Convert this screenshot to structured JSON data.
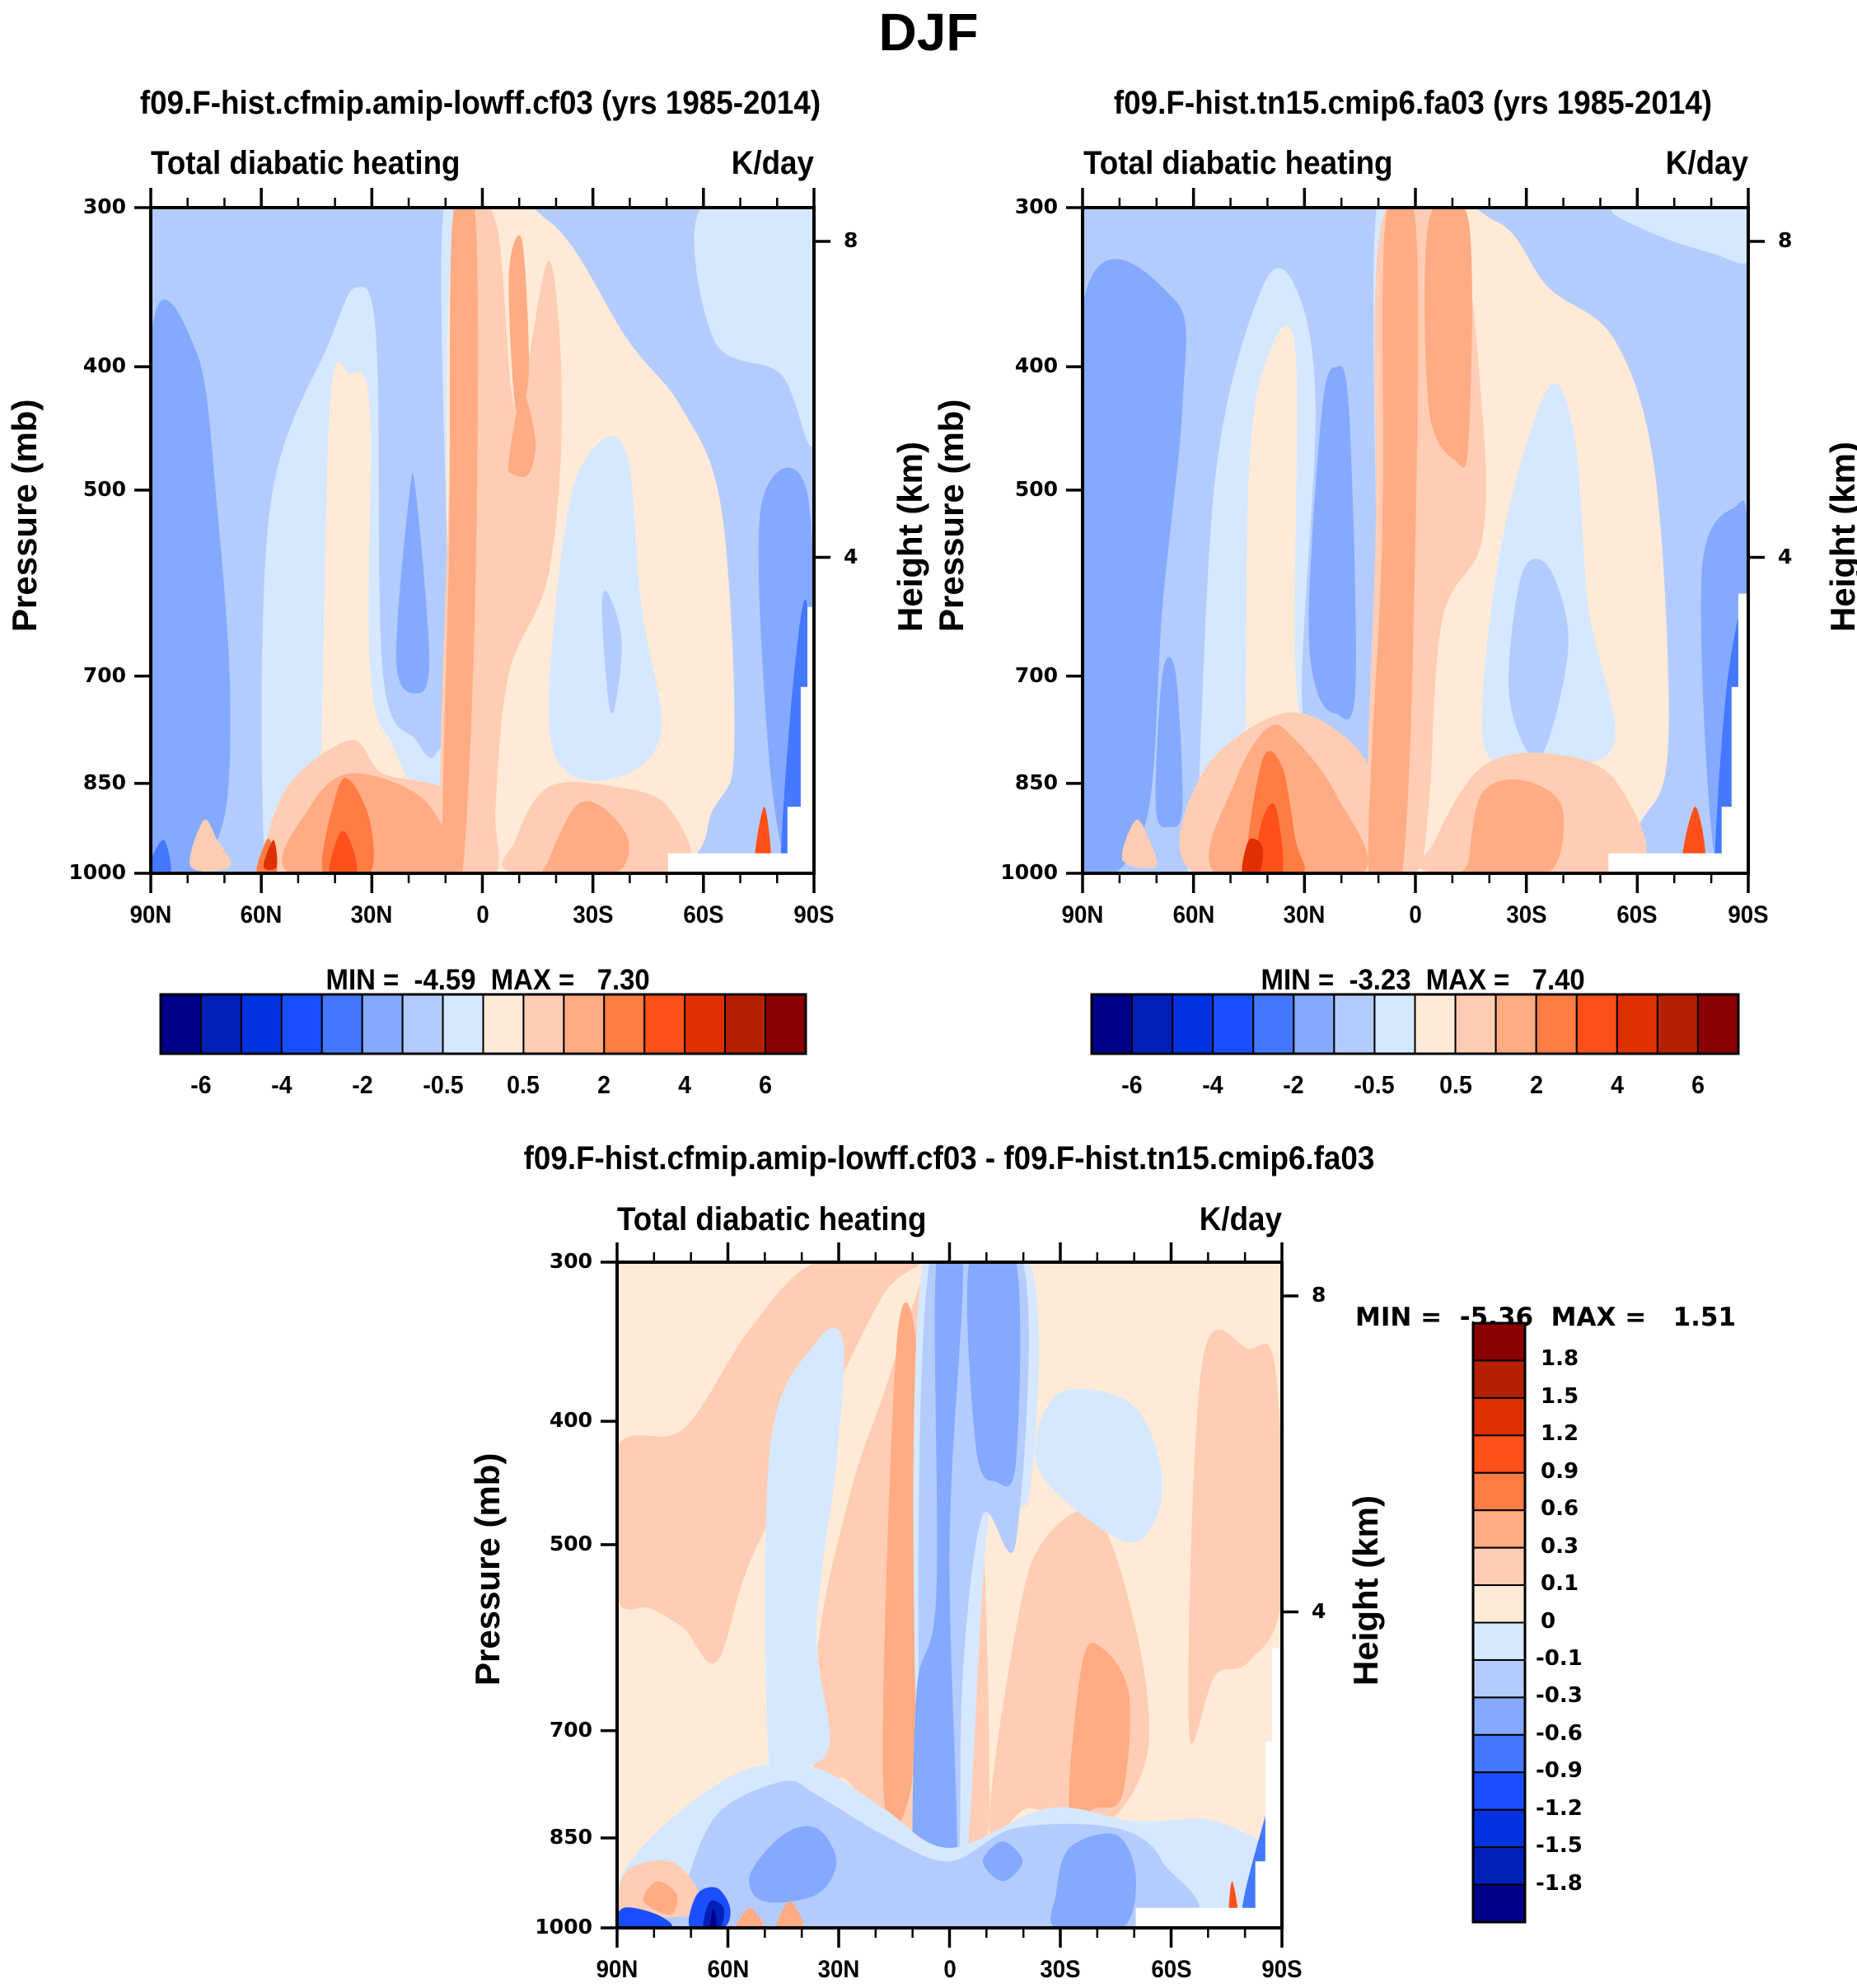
{
  "figure": {
    "title": "DJF"
  },
  "colors": {
    "diverging_16": [
      "#00008b",
      "#0020b8",
      "#0032df",
      "#1a4fff",
      "#4478ff",
      "#84a9ff",
      "#b4ccfd",
      "#d6e8ff",
      "#ffead8",
      "#ffcdb4",
      "#ffab84",
      "#ff7c44",
      "#ff501a",
      "#e03000",
      "#b52000",
      "#8b0000"
    ],
    "axis": "#000000",
    "missing": "#ffffff"
  },
  "chart_data": [
    {
      "id": "panel-1",
      "type": "heatmap",
      "subtype": "latitude-pressure contour",
      "title": "f09.F-hist.cfmip.amip-lowff.cf03 (yrs 1985-2014)",
      "left_string": "Total diabatic heating",
      "right_string": "K/day",
      "xlabel": "",
      "ylabel": "Pressure (mb)",
      "y2label": "Height (km)",
      "x_ticks": [
        "90N",
        "60N",
        "30N",
        "0",
        "30S",
        "60S",
        "90S"
      ],
      "x_range": [
        90,
        -90
      ],
      "y_ticks": [
        "300",
        "400",
        "500",
        "700",
        "850",
        "1000"
      ],
      "y_tick_values": [
        300,
        400,
        500,
        700,
        850,
        1000
      ],
      "y_range": [
        1000,
        300
      ],
      "y_scale": "log",
      "y2_ticks": [
        "8",
        "4"
      ],
      "y2_tick_values": [
        8,
        4
      ],
      "stats": {
        "min_label": "MIN =",
        "min": "-4.59",
        "max_label": "MAX =",
        "max": "7.30"
      },
      "colorbar": {
        "orientation": "horizontal",
        "levels": [
          -7,
          -6,
          -5,
          -4,
          -3,
          -2,
          -1,
          -0.5,
          0,
          0.5,
          1,
          2,
          3,
          4,
          5,
          6,
          7
        ],
        "labels": [
          "-6",
          "-4",
          "-2",
          "-0.5",
          "0.5",
          "2",
          "4",
          "6"
        ]
      },
      "features": [
        {
          "desc": "deep tropical heating column near equator (5N-5S), 300-1000 mb",
          "level_range": [
            1,
            3
          ]
        },
        {
          "desc": "boundary-layer heating 60N-30N below 850 mb",
          "level_range": [
            2,
            5
          ]
        },
        {
          "desc": "subtropical cooling minima ~20N and ~30S at 600-750 mb",
          "level_range": [
            -2,
            -1
          ]
        },
        {
          "desc": "polar cooling 90N-70N throughout column",
          "level_range": [
            -2,
            -1
          ]
        },
        {
          "desc": "surface heating hotspot near 80S",
          "level_range": [
            4,
            7
          ]
        }
      ]
    },
    {
      "id": "panel-2",
      "type": "heatmap",
      "subtype": "latitude-pressure contour",
      "title": "f09.F-hist.tn15.cmip6.fa03 (yrs 1985-2014)",
      "left_string": "Total diabatic heating",
      "right_string": "K/day",
      "xlabel": "",
      "ylabel": "Pressure (mb)",
      "y2label": "Height (km)",
      "x_ticks": [
        "90N",
        "60N",
        "30N",
        "0",
        "30S",
        "60S",
        "90S"
      ],
      "x_range": [
        90,
        -90
      ],
      "y_ticks": [
        "300",
        "400",
        "500",
        "700",
        "850",
        "1000"
      ],
      "y_tick_values": [
        300,
        400,
        500,
        700,
        850,
        1000
      ],
      "y_range": [
        1000,
        300
      ],
      "y_scale": "log",
      "y2_ticks": [
        "8",
        "4"
      ],
      "y2_tick_values": [
        8,
        4
      ],
      "stats": {
        "min_label": "MIN =",
        "min": "-3.23",
        "max_label": "MAX =",
        "max": "7.40"
      },
      "colorbar": {
        "orientation": "horizontal",
        "levels": [
          -7,
          -6,
          -5,
          -4,
          -3,
          -2,
          -1,
          -0.5,
          0,
          0.5,
          1,
          2,
          3,
          4,
          5,
          6,
          7
        ],
        "labels": [
          "-6",
          "-4",
          "-2",
          "-0.5",
          "0.5",
          "2",
          "4",
          "6"
        ]
      },
      "features": [
        {
          "desc": "deep tropical heating column 5N-15S, 300-1000 mb",
          "level_range": [
            1,
            3
          ]
        },
        {
          "desc": "boundary-layer heating 60N-30N below 850 mb",
          "level_range": [
            2,
            6
          ]
        },
        {
          "desc": "subtropical cooling minima ~20N and ~30S at 600-800 mb",
          "level_range": [
            -2,
            -1
          ]
        },
        {
          "desc": "polar cooling 90N-70N throughout column",
          "level_range": [
            -2,
            -1
          ]
        }
      ]
    },
    {
      "id": "panel-3",
      "type": "heatmap",
      "subtype": "latitude-pressure contour (difference)",
      "title": "f09.F-hist.cfmip.amip-lowff.cf03 - f09.F-hist.tn15.cmip6.fa03",
      "left_string": "Total diabatic heating",
      "right_string": "K/day",
      "xlabel": "",
      "ylabel": "Pressure (mb)",
      "y2label": "Height (km)",
      "x_ticks": [
        "90N",
        "60N",
        "30N",
        "0",
        "30S",
        "60S",
        "90S"
      ],
      "x_range": [
        90,
        -90
      ],
      "y_ticks": [
        "300",
        "400",
        "500",
        "700",
        "850",
        "1000"
      ],
      "y_tick_values": [
        300,
        400,
        500,
        700,
        850,
        1000
      ],
      "y_range": [
        1000,
        300
      ],
      "y_scale": "log",
      "y2_ticks": [
        "8",
        "4"
      ],
      "y2_tick_values": [
        8,
        4
      ],
      "stats": {
        "min_label": "MIN =",
        "min": "-5.36",
        "max_label": "MAX =",
        "max": "1.51"
      },
      "colorbar": {
        "orientation": "vertical",
        "levels": [
          -2.1,
          -1.8,
          -1.5,
          -1.2,
          -0.9,
          -0.6,
          -0.3,
          -0.1,
          0,
          0.1,
          0.3,
          0.6,
          0.9,
          1.2,
          1.5,
          1.8,
          2.1
        ],
        "labels": [
          "1.8",
          "1.5",
          "1.2",
          "0.9",
          "0.6",
          "0.3",
          "0.1",
          "0",
          "-0.1",
          "-0.3",
          "-0.6",
          "-0.9",
          "-1.2",
          "-1.5",
          "-1.8"
        ]
      },
      "features": [
        {
          "desc": "negative difference column at equator to 10S, full depth",
          "level_range": [
            -0.6,
            -0.3
          ]
        },
        {
          "desc": "positive differences mid-troposphere 90N-40N",
          "level_range": [
            0,
            0.3
          ]
        },
        {
          "desc": "positive maximum ~10N 400-800 mb",
          "level_range": [
            0.3,
            0.6
          ]
        },
        {
          "desc": "positive maximum ~35S 700-800 mb",
          "level_range": [
            0.3,
            0.6
          ]
        },
        {
          "desc": "negative boundary-layer differences 60N-30S below 850 mb",
          "level_range": [
            -0.9,
            -0.1
          ]
        },
        {
          "desc": "strong negative surface minimum near 60N",
          "level_range": [
            -2.1,
            -1.2
          ]
        }
      ]
    }
  ]
}
